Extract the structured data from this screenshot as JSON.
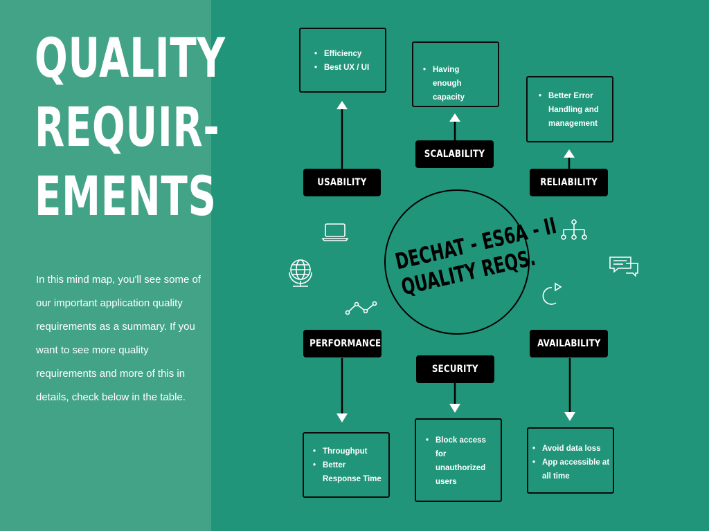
{
  "title_lines": [
    "QUALITY",
    "REQUIR-",
    "EMENTS"
  ],
  "intro": "In this mind map, you'll see some of our important  application quality requirements as a summary. If you want to see more quality requirements and more of this in details, check below in the table.",
  "center": [
    "DECHAT - ES6A - II",
    "QUALITY REQS."
  ],
  "nodes": {
    "usability": {
      "label": "USABILITY",
      "items": [
        "Efficiency",
        "Best UX / UI"
      ]
    },
    "scalability": {
      "label": "SCALABILITY",
      "items": [
        "Having enough capacity"
      ]
    },
    "reliability": {
      "label": "RELIABILITY",
      "items": [
        "Better Error Handling and management"
      ]
    },
    "performance": {
      "label": "PERFORMANCE",
      "items": [
        "Throughput",
        "Better Response  Time"
      ]
    },
    "security": {
      "label": "SECURITY",
      "items": [
        "Block access for unauthorized users"
      ]
    },
    "availability": {
      "label": "AVAILABILITY",
      "items": [
        "Avoid data loss",
        "App accessible at all time"
      ]
    }
  },
  "icons": [
    "laptop-icon",
    "hierarchy-icon",
    "globe-icon",
    "chat-bubbles-icon",
    "line-graph-icon",
    "refresh-arrow-icon"
  ],
  "colors": {
    "background": "#21957A",
    "left_panel": "#43A387",
    "label": "#000000",
    "text": "#FFFFFF"
  }
}
